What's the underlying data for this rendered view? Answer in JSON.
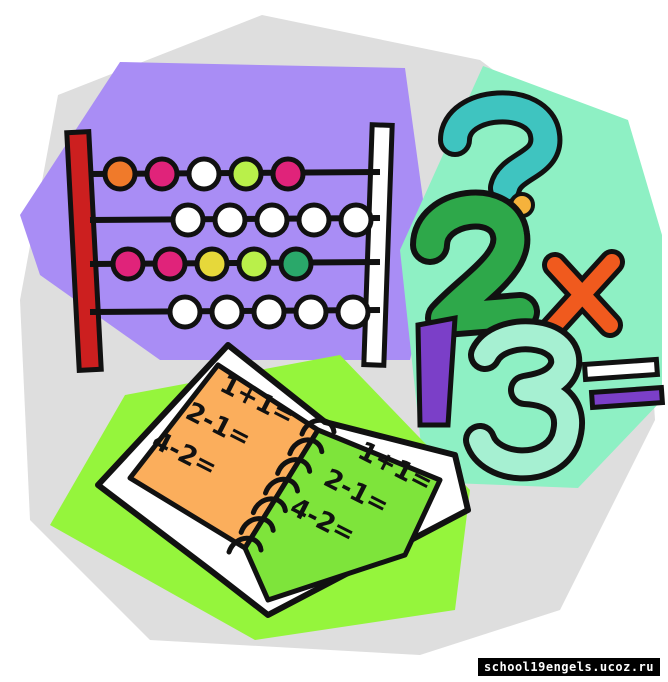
{
  "palette": {
    "background_grey": "#dedede",
    "purple": "#a98df5",
    "mint": "#8ef0c4",
    "lime": "#95f53c",
    "orange_page": "#fbae5c",
    "green_page": "#7ee43b",
    "abacus_red_bar": "#cc1f1f",
    "outline": "#111111"
  },
  "abacus": {
    "rows": [
      {
        "beads": [
          "#f07a2a",
          "#e0237a",
          "#ffffff",
          "#b9f04a",
          "#e0237a"
        ]
      },
      {
        "beads": [
          "#ffffff",
          "#ffffff",
          "#ffffff",
          "#ffffff",
          "#ffffff"
        ]
      },
      {
        "beads": [
          "#e0237a",
          "#e0237a",
          "#e6d83a",
          "#b9f04a",
          "#2aa86a"
        ]
      },
      {
        "beads": [
          "#ffffff",
          "#ffffff",
          "#ffffff",
          "#ffffff",
          "#ffffff"
        ]
      }
    ]
  },
  "symbols": {
    "question": "?",
    "two": "2",
    "times": "×",
    "one": "1",
    "three": "3",
    "equals": "=",
    "question_color": "#3fc4c0",
    "question_dot_color": "#f5b23c",
    "two_color": "#2ea84a",
    "times_color": "#f05a1e",
    "one_color": "#7b3fc8",
    "three_color": "#a6f0d2",
    "equals_color": "#7b3fc8"
  },
  "book": {
    "left_page_lines": [
      "1+1=",
      "2-1=",
      "4-2="
    ],
    "right_page_lines": [
      "1+1=",
      "2-1=",
      "4-2="
    ]
  },
  "watermark": "school19engels.ucoz.ru"
}
